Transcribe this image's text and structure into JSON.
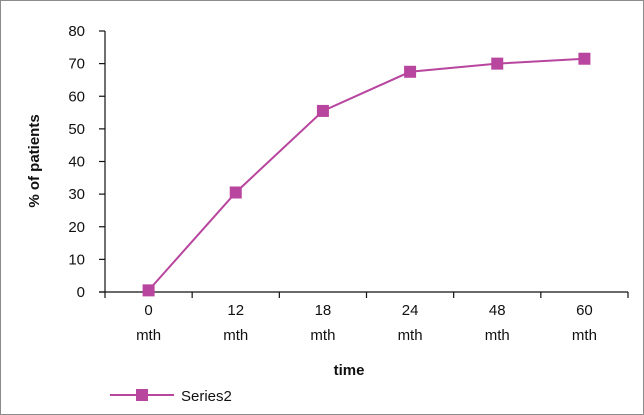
{
  "chart_data": {
    "type": "line",
    "categories": [
      "0 mth",
      "12 mth",
      "18 mth",
      "24 mth",
      "48 mth",
      "60 mth"
    ],
    "category_lines": [
      [
        "0",
        "mth"
      ],
      [
        "12",
        "mth"
      ],
      [
        "18",
        "mth"
      ],
      [
        "24",
        "mth"
      ],
      [
        "48",
        "mth"
      ],
      [
        "60",
        "mth"
      ]
    ],
    "series": [
      {
        "name": "Series2",
        "values": [
          0.5,
          30.5,
          55.5,
          67.5,
          70,
          71.5
        ],
        "color": "#b8459e"
      }
    ],
    "title": "",
    "xlabel": "time",
    "ylabel": "% of patients",
    "ylim": [
      0,
      80
    ],
    "yticks": [
      0,
      10,
      20,
      30,
      40,
      50,
      60,
      70,
      80
    ],
    "grid": false,
    "legend": "bottom-left"
  }
}
